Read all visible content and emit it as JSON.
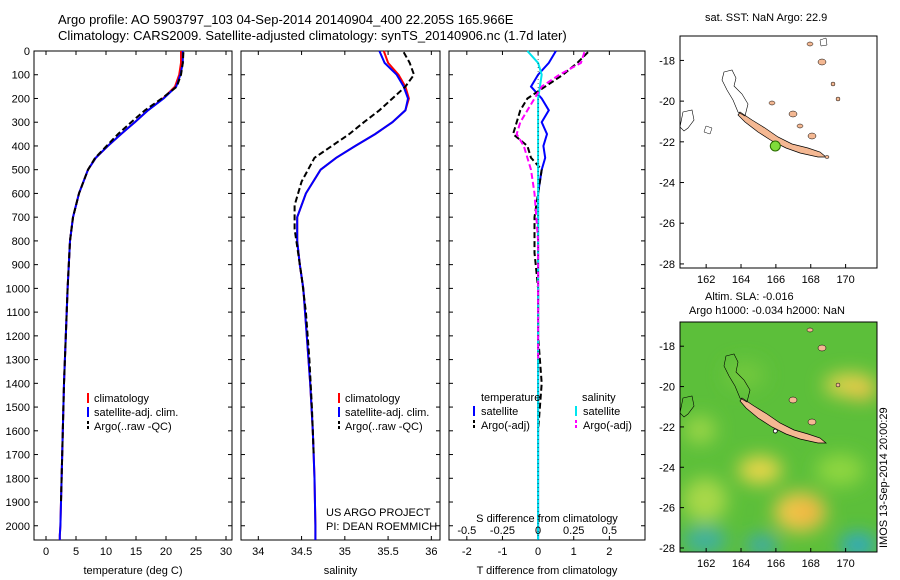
{
  "header": {
    "title_line1": "Argo profile: AO 5903797_103 04-Sep-2014 20140904_400 22.205S 165.966E",
    "title_line2": "Climatology: CARS2009. Satellite-adjusted climatology: synTS_20140906.nc (1.7d later)"
  },
  "colors": {
    "climatology": "#ff0000",
    "satellite": "#0000ff",
    "argo": "#000000",
    "salinity_satellite": "#00e5ee",
    "salinity_argo": "#ff00ff"
  },
  "chart_data": [
    {
      "type": "line",
      "panel": "temperature",
      "xlabel": "temperature (deg C)",
      "ylabel": "",
      "xlim": [
        -2,
        31
      ],
      "ylim": [
        2060,
        0
      ],
      "xticks": [
        "0",
        "5",
        "10",
        "15",
        "20",
        "25",
        "30"
      ],
      "yticks": [
        "0",
        "100",
        "200",
        "300",
        "400",
        "500",
        "600",
        "700",
        "800",
        "900",
        "1000",
        "1100",
        "1200",
        "1300",
        "1400",
        "1500",
        "1600",
        "1700",
        "1800",
        "1900",
        "2000"
      ],
      "legend": [
        "climatology",
        "satellite-adj. clim.",
        "Argo(..raw -QC)"
      ],
      "series": [
        {
          "name": "climatology",
          "x": [
            22.5,
            22.5,
            22.2,
            21.5,
            19.5,
            17,
            14.8,
            12.5,
            10.3,
            8.3,
            7.0,
            5.5,
            4.5,
            4.0,
            3.6,
            3.3,
            3.0,
            2.8,
            2.6,
            2.5,
            2.4,
            2.3,
            2.3
          ],
          "y": [
            0,
            50,
            100,
            150,
            200,
            250,
            300,
            350,
            400,
            450,
            500,
            600,
            700,
            800,
            1000,
            1200,
            1400,
            1600,
            1800,
            1900,
            2000,
            2040,
            2060
          ]
        },
        {
          "name": "satellite-adj. clim.",
          "x": [
            22.8,
            22.8,
            22.4,
            21.7,
            19.6,
            17,
            14.8,
            12.5,
            10.3,
            8.3,
            7.0,
            5.5,
            4.5,
            4.0,
            3.6,
            3.3,
            3.0,
            2.8,
            2.6,
            2.5,
            2.4,
            2.3,
            2.3
          ],
          "y": [
            0,
            50,
            100,
            150,
            200,
            250,
            300,
            350,
            400,
            450,
            500,
            600,
            700,
            800,
            1000,
            1200,
            1400,
            1600,
            1800,
            1900,
            2000,
            2040,
            2060
          ]
        },
        {
          "name": "Argo(..raw -QC)",
          "x": [
            22.9,
            22.8,
            22.5,
            21.8,
            19.3,
            16.5,
            14.2,
            12.0,
            10.1,
            8.2,
            7.0,
            5.5,
            4.5,
            4.0,
            3.6,
            3.3,
            3.0,
            2.8,
            2.6,
            2.5
          ],
          "y": [
            5,
            50,
            100,
            150,
            200,
            250,
            300,
            350,
            400,
            450,
            500,
            600,
            700,
            800,
            1000,
            1200,
            1400,
            1600,
            1800,
            1900
          ]
        }
      ]
    },
    {
      "type": "line",
      "panel": "salinity",
      "xlabel": "salinity",
      "ylabel": "",
      "xlim": [
        33.8,
        36.1
      ],
      "ylim": [
        2060,
        0
      ],
      "xticks": [
        "34",
        "34.5",
        "35",
        "35.5",
        "36"
      ],
      "legend": [
        "climatology",
        "satellite-adj. clim.",
        "Argo(..raw -QC)"
      ],
      "series": [
        {
          "name": "climatology",
          "x": [
            35.45,
            35.5,
            35.62,
            35.7,
            35.74,
            35.7,
            35.55,
            35.35,
            35.12,
            34.9,
            34.72,
            34.55,
            34.45,
            34.45,
            34.48,
            34.52,
            34.56,
            34.6,
            34.63,
            34.65,
            34.66,
            34.66
          ],
          "y": [
            0,
            50,
            100,
            150,
            200,
            250,
            300,
            350,
            400,
            450,
            500,
            600,
            700,
            800,
            900,
            1000,
            1200,
            1400,
            1600,
            1800,
            2000,
            2060
          ]
        },
        {
          "name": "satellite-adj. clim.",
          "x": [
            35.4,
            35.46,
            35.6,
            35.68,
            35.73,
            35.7,
            35.55,
            35.35,
            35.12,
            34.9,
            34.72,
            34.55,
            34.45,
            34.45,
            34.48,
            34.52,
            34.56,
            34.6,
            34.63,
            34.65,
            34.66,
            34.66
          ],
          "y": [
            0,
            50,
            100,
            150,
            200,
            250,
            300,
            350,
            400,
            450,
            500,
            600,
            700,
            800,
            900,
            1000,
            1200,
            1400,
            1600,
            1800,
            2000,
            2060
          ]
        },
        {
          "name": "Argo(..raw -QC)",
          "x": [
            35.68,
            35.75,
            35.8,
            35.7,
            35.55,
            35.4,
            35.22,
            35.05,
            34.85,
            34.65,
            34.5,
            34.42,
            34.42,
            34.46,
            34.5,
            34.55,
            34.59,
            34.62,
            34.64
          ],
          "y": [
            5,
            50,
            100,
            150,
            200,
            250,
            300,
            350,
            400,
            450,
            550,
            650,
            750,
            850,
            950,
            1100,
            1300,
            1500,
            1700
          ]
        }
      ]
    },
    {
      "type": "line",
      "panel": "difference",
      "xlabel": "T difference from climatology",
      "xlabel_top": "S difference from climatology",
      "xlim": [
        -2.5,
        3
      ],
      "ylim": [
        2060,
        0
      ],
      "xticks": [
        "-2",
        "-1",
        "0",
        "1",
        "2"
      ],
      "xticks_top": [
        "-0.5",
        "-0.25",
        "0",
        "0.25",
        "0.5"
      ],
      "legend_titles": [
        "temperature",
        "salinity"
      ],
      "legend": [
        "satellite",
        "Argo(-adj)",
        "satellite",
        "Argo(-adj)"
      ],
      "series": [
        {
          "name": "satellite",
          "x": [
            0.5,
            0.3,
            0.0,
            -0.2,
            0.1,
            0.3,
            0.1,
            0.25,
            0.15,
            0.2,
            0.1,
            0.0,
            0.0,
            0.0,
            0.0,
            0.0,
            0.0
          ],
          "y": [
            0,
            50,
            100,
            150,
            200,
            250,
            300,
            350,
            400,
            450,
            500,
            600,
            800,
            1000,
            1400,
            1800,
            2060
          ]
        },
        {
          "name": "Argo(-adj)",
          "x": [
            1.4,
            1.1,
            0.7,
            0.2,
            -0.3,
            -0.5,
            -0.6,
            -0.7,
            -0.3,
            -0.2,
            0.1,
            0.0,
            -0.1,
            -0.1,
            0.0,
            0.0,
            0.1,
            0.0
          ],
          "y": [
            5,
            50,
            100,
            150,
            200,
            250,
            300,
            350,
            400,
            450,
            500,
            600,
            700,
            850,
            1000,
            1200,
            1400,
            1600
          ]
        },
        {
          "name": "satellite",
          "x": [
            -0.3,
            0.0,
            0.1,
            0.0,
            0.0,
            0.0,
            0.0,
            0.0,
            0.0,
            0.0,
            0.0,
            0.0,
            0.0
          ],
          "y": [
            0,
            50,
            100,
            200,
            300,
            400,
            500,
            700,
            900,
            1200,
            1500,
            1800,
            2060
          ]
        },
        {
          "name": "Argo(-adj)",
          "x": [
            1.3,
            1.2,
            0.6,
            0.1,
            -0.1,
            -0.3,
            -0.5,
            -0.6,
            -0.4,
            -0.2,
            -0.1,
            0.0,
            0.0,
            0.0
          ],
          "y": [
            5,
            50,
            100,
            150,
            200,
            250,
            300,
            350,
            400,
            500,
            600,
            800,
            1000,
            1300
          ]
        }
      ]
    },
    {
      "type": "map",
      "panel": "sst-map",
      "title": "sat. SST: NaN Argo: 22.9",
      "xlim": [
        160.5,
        171.8
      ],
      "ylim": [
        -28.2,
        -16.8
      ],
      "xticks": [
        "162",
        "164",
        "166",
        "168",
        "170"
      ],
      "yticks": [
        "-18",
        "-20",
        "-22",
        "-24",
        "-26",
        "-28"
      ],
      "argo_position": {
        "lon": 165.966,
        "lat": -22.205
      }
    },
    {
      "type": "heatmap",
      "panel": "altimetry-map",
      "title_line1": "Altim. SLA: -0.016",
      "title_line2": "Argo h1000: -0.034 h2000: NaN",
      "xlim": [
        160.5,
        171.8
      ],
      "ylim": [
        -28.2,
        -16.8
      ],
      "xticks": [
        "162",
        "164",
        "166",
        "168",
        "170"
      ],
      "yticks": [
        "-18",
        "-20",
        "-22",
        "-24",
        "-26",
        "-28"
      ]
    }
  ],
  "annotations": {
    "project": "US ARGO PROJECT",
    "pi": "PI: DEAN ROEMMICH",
    "stamp": "IMOS 13-Sep-2014 20:00:29"
  }
}
